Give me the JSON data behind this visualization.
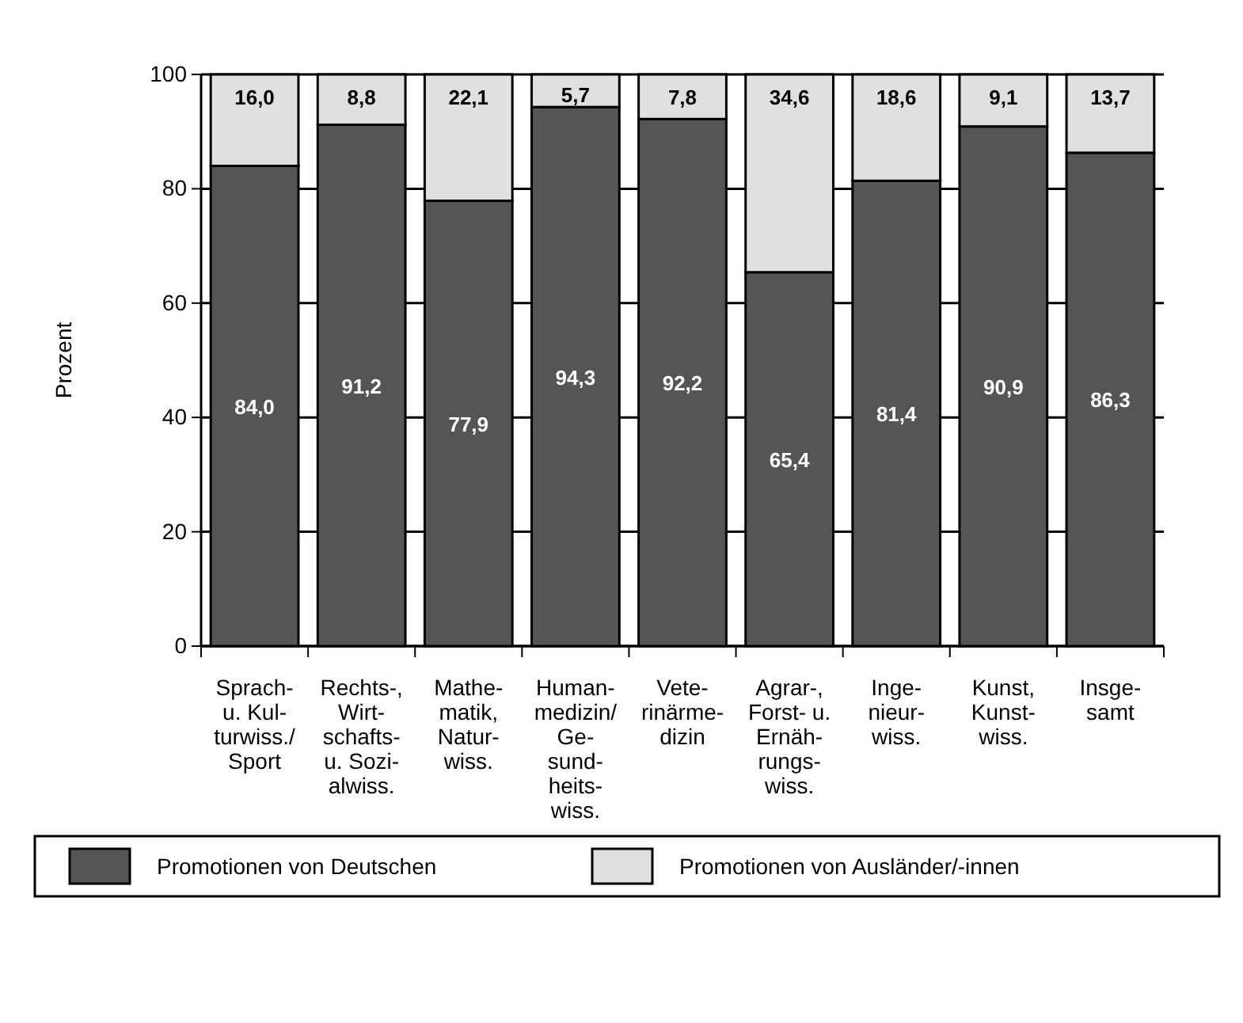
{
  "chart_data": {
    "type": "bar",
    "stacked": true,
    "ylabel": "Prozent",
    "ylim": [
      0,
      100
    ],
    "yticks": [
      0,
      20,
      40,
      60,
      80,
      100
    ],
    "grid": "y",
    "legend": "bottom",
    "categories": [
      "Sprach-\nu. Kul-\nturwiss./\nSport",
      "Rechts-,\nWirt-\nschafts-\nu. Sozi-\nalwiss.",
      "Mathe-\nmatik,\nNatur-\nwiss.",
      "Human-\nmedizin/\nGe-\nsund-\nheits-\nwiss.",
      "Vete-\nrinärme-\ndizin",
      "Agrar-,\nForst- u.\nErnäh-\nrungs-\nwiss.",
      "Inge-\nnieur-\nwiss.",
      "Kunst,\nKunst-\nwiss.",
      "Insge-\nsamt"
    ],
    "series": [
      {
        "name": "Promotionen von Deutschen",
        "color": "#555555",
        "values": [
          84.0,
          91.2,
          77.9,
          94.3,
          92.2,
          65.4,
          81.4,
          90.9,
          86.3
        ],
        "value_labels": [
          "84,0",
          "91,2",
          "77,9",
          "94,3",
          "92,2",
          "65,4",
          "81,4",
          "90,9",
          "86,3"
        ]
      },
      {
        "name": "Promotionen von Ausländer/-innen",
        "color": "#e0e0e0",
        "values": [
          16.0,
          8.8,
          22.1,
          5.7,
          7.8,
          34.6,
          18.6,
          9.1,
          13.7
        ],
        "value_labels": [
          "16,0",
          "8,8",
          "22,1",
          "5,7",
          "7,8",
          "34,6",
          "18,6",
          "9,1",
          "13,7"
        ]
      }
    ]
  }
}
